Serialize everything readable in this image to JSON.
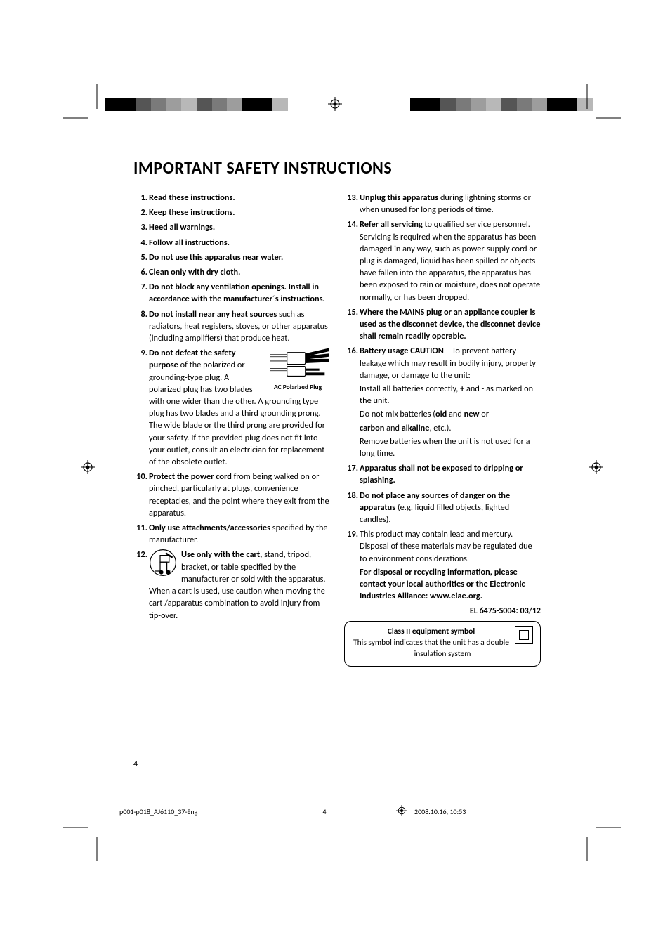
{
  "page_title": "IMPORTANT SAFETY INSTRUCTIONS",
  "print_colorbar": [
    "#000000",
    "#000000",
    "#555555",
    "#7a7a7a",
    "#9d9d9d",
    "#b8b8b8",
    "#555555",
    "#7a7a7a",
    "#9d9d9d",
    "#000000",
    "#000000",
    "#b8b8b8"
  ],
  "plug_caption": "AC Polarized Plug",
  "items_left": [
    {
      "n": "1.",
      "bold": "Read these instructions.",
      "rest": ""
    },
    {
      "n": "2.",
      "bold": "Keep these instructions.",
      "rest": ""
    },
    {
      "n": "3.",
      "bold": "Heed all warnings.",
      "rest": ""
    },
    {
      "n": "4.",
      "bold": "Follow all instructions.",
      "rest": ""
    },
    {
      "n": "5.",
      "bold": "Do not use this apparatus near water.",
      "rest": ""
    },
    {
      "n": "6.",
      "bold": "Clean only with dry cloth.",
      "rest": ""
    },
    {
      "n": "7.",
      "bold": "Do not block any ventilation openings. Install in accordance with the manufacturer´s instructions.",
      "rest": ""
    },
    {
      "n": "8.",
      "bold": "Do not install near any heat sources",
      "rest": " such as radiators, heat registers, stoves, or other apparatus (including amplifiers) that produce heat."
    },
    {
      "n": "9.",
      "bold": "Do not defeat the safety purpose",
      "rest": " of the polarized or grounding-type plug. A polarized plug has two blades with one wider than the other. A grounding type plug has two blades and a third grounding prong. The wide blade or the third prong are provided for your safety. If the provided plug does not fit into your outlet, consult an electrician for replacement of the obsolete outlet.",
      "figure": true
    },
    {
      "n": "10.",
      "bold": "Protect the power cord",
      "rest": " from being walked on or pinched, particularly at plugs, convenience receptacles, and the point where they exit from the apparatus."
    },
    {
      "n": "11.",
      "bold": "Only use attachments/accessories",
      "rest": " specified by the manufacturer."
    },
    {
      "n": "12.",
      "bold": "Use only with the cart,",
      "rest": " stand, tripod, bracket, or table specified by the manufacturer or sold with the apparatus. When a cart is used, use caution when moving the cart /apparatus combination to avoid injury from tip-over.",
      "cart": true
    }
  ],
  "items_right": [
    {
      "n": "13.",
      "bold": "Unplug this apparatus",
      "rest": " during lightning storms or when unused for long periods of time."
    },
    {
      "n": "14.",
      "bold": "Refer all servicing",
      "rest": " to qualified service personnel. Servicing is required when the apparatus has been damaged in any way, such as power-supply cord or plug is damaged, liquid has been spilled or objects have fallen into the apparatus, the apparatus has been exposed to rain or moisture, does not operate normally, or has been dropped."
    },
    {
      "n": "15.",
      "bold": "Where the MAINS plug or an appliance coupler is used as the disconnet device, the disconnet device shall remain readily operable.",
      "rest": ""
    },
    {
      "n": "16.",
      "bold": "Battery usage CAUTION",
      "rest": " – To prevent battery leakage which may result in bodily injury, property damage, or damage to the unit:",
      "extras": [
        {
          "pre": "Install ",
          "b1": "all",
          "mid": " batteries correctly, ",
          "b2": "+",
          "post": " and - as marked on the unit."
        },
        {
          "pre": "Do not mix batteries (",
          "b1": "old",
          "mid": " and ",
          "b2": "new",
          "post": " or "
        },
        {
          "b1": "carbon",
          "mid": " and ",
          "b2": "alkaline",
          "post": ", etc.)."
        },
        {
          "pre": "Remove batteries when the unit is not used for a long time.",
          "b1": "",
          "mid": "",
          "b2": "",
          "post": ""
        }
      ]
    },
    {
      "n": "17.",
      "bold": "Apparatus shall not be exposed to dripping or splashing.",
      "rest": ""
    },
    {
      "n": "18.",
      "bold": "Do not place any sources of danger on the apparatus",
      "rest": " (e.g. liquid filled objects, lighted candles)."
    },
    {
      "n": "19.",
      "bold": "",
      "rest": "This product may contain lead and mercury. Disposal of these materials may be regulated due to environment considerations.",
      "extras_bold": "For disposal or recycling information, please contact your local authorities or the Electronic Industries Alliance: www.eiae.org."
    }
  ],
  "el_code": "EL 6475-S004: 03/12",
  "class2": {
    "title": "Class II equipment symbol",
    "desc": "This symbol indicates that the unit has a double insulation system"
  },
  "page_number": "4",
  "footer": {
    "filename": "p001-p018_AJ6110_37-Eng",
    "page": "4",
    "timestamp": "2008.10.16, 10:53"
  }
}
